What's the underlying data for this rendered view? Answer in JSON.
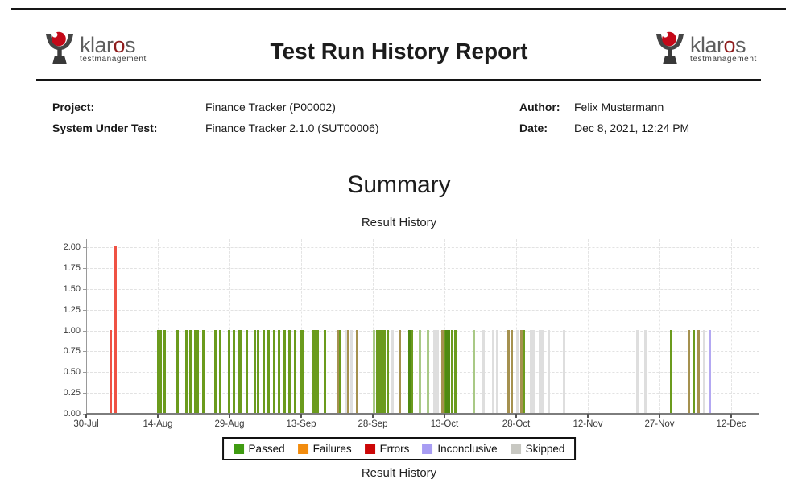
{
  "header": {
    "title": "Test Run History Report",
    "logo": {
      "brand_prefix": "klar",
      "brand_o": "o",
      "brand_suffix": "s",
      "subtitle": "testmanagement",
      "icon_red": "#c40818",
      "icon_gray": "#454545"
    }
  },
  "info": {
    "left": [
      {
        "label": "Project:",
        "value": "Finance Tracker (P00002)"
      },
      {
        "label": "System Under Test:",
        "value": "Finance Tracker 2.1.0 (SUT00006)"
      }
    ],
    "right": [
      {
        "label": "Author:",
        "value": "Felix Mustermann"
      },
      {
        "label": "Date:",
        "value": "Dec 8, 2021, 12:24 PM"
      }
    ]
  },
  "summary": {
    "heading": "Summary",
    "chart_title": "Result History",
    "caption": "Result History"
  },
  "chart_data": {
    "type": "bar",
    "title": "Result History",
    "xlabel": "",
    "ylabel": "",
    "ylim": [
      0,
      2.0
    ],
    "grid": "dashed",
    "legend_position": "bottom-center",
    "y_ticks": [
      "0.00",
      "0.25",
      "0.50",
      "0.75",
      "1.00",
      "1.25",
      "1.50",
      "1.75",
      "2.00"
    ],
    "x_ticks": [
      "30-Jul",
      "14-Aug",
      "29-Aug",
      "13-Sep",
      "28-Sep",
      "13-Oct",
      "28-Oct",
      "12-Nov",
      "27-Nov",
      "12-Dec"
    ],
    "x_tick_interval_days": 15,
    "legend": [
      {
        "label": "Passed",
        "color": "#3f9b11"
      },
      {
        "label": "Failures",
        "color": "#f28c0e"
      },
      {
        "label": "Errors",
        "color": "#cc0707"
      },
      {
        "label": "Inconclusive",
        "color": "#a89df3"
      },
      {
        "label": "Skipped",
        "color": "#c8c8c2"
      }
    ],
    "bar_colors": {
      "passed": "#6b9b1d",
      "passed-light": "#a9c986",
      "passed-dark": "#4f8a10",
      "mixed": "#a5914f",
      "skipped": "#dedede",
      "error": "#ef5244",
      "inconclusive": "#b3a8f2"
    },
    "bars": [
      {
        "d": 5.2,
        "v": 1,
        "c": "error"
      },
      {
        "d": 6.2,
        "v": 2,
        "c": "error"
      },
      {
        "d": 15.0,
        "v": 1,
        "c": "passed"
      },
      {
        "d": 15.6,
        "v": 1,
        "c": "passed"
      },
      {
        "d": 16.4,
        "v": 1,
        "c": "passed"
      },
      {
        "d": 19.2,
        "v": 1,
        "c": "passed"
      },
      {
        "d": 20.9,
        "v": 1,
        "c": "passed"
      },
      {
        "d": 21.8,
        "v": 1,
        "c": "passed"
      },
      {
        "d": 22.9,
        "v": 1,
        "c": "passed"
      },
      {
        "d": 23.4,
        "v": 1,
        "c": "passed"
      },
      {
        "d": 24.6,
        "v": 1,
        "c": "passed"
      },
      {
        "d": 27.1,
        "v": 1,
        "c": "passed"
      },
      {
        "d": 28.1,
        "v": 1,
        "c": "passed"
      },
      {
        "d": 29.9,
        "v": 1,
        "c": "passed"
      },
      {
        "d": 30.9,
        "v": 1,
        "c": "passed"
      },
      {
        "d": 31.9,
        "v": 1,
        "c": "passed"
      },
      {
        "d": 32.4,
        "v": 1,
        "c": "passed"
      },
      {
        "d": 33.7,
        "v": 1,
        "c": "passed"
      },
      {
        "d": 35.3,
        "v": 1,
        "c": "passed"
      },
      {
        "d": 35.9,
        "v": 1,
        "c": "passed"
      },
      {
        "d": 37.1,
        "v": 1,
        "c": "passed"
      },
      {
        "d": 38.1,
        "v": 1,
        "c": "passed"
      },
      {
        "d": 39.3,
        "v": 1,
        "c": "passed"
      },
      {
        "d": 40.4,
        "v": 1,
        "c": "passed"
      },
      {
        "d": 41.5,
        "v": 1,
        "c": "passed"
      },
      {
        "d": 42.6,
        "v": 1,
        "c": "passed"
      },
      {
        "d": 43.8,
        "v": 1,
        "c": "passed"
      },
      {
        "d": 44.9,
        "v": 1,
        "c": "passed"
      },
      {
        "d": 45.4,
        "v": 1,
        "c": "passed"
      },
      {
        "d": 47.4,
        "v": 1,
        "c": "passed"
      },
      {
        "d": 47.9,
        "v": 1,
        "c": "passed"
      },
      {
        "d": 48.4,
        "v": 1,
        "c": "passed"
      },
      {
        "d": 49.9,
        "v": 1,
        "c": "passed"
      },
      {
        "d": 52.6,
        "v": 1,
        "c": "mixed"
      },
      {
        "d": 53.1,
        "v": 1,
        "c": "passed"
      },
      {
        "d": 54.4,
        "v": 1,
        "c": "skipped"
      },
      {
        "d": 54.9,
        "v": 1,
        "c": "mixed"
      },
      {
        "d": 55.5,
        "v": 1,
        "c": "skipped"
      },
      {
        "d": 56.7,
        "v": 1,
        "c": "mixed"
      },
      {
        "d": 60.2,
        "v": 1,
        "c": "passed-light"
      },
      {
        "d": 60.9,
        "v": 1,
        "c": "passed"
      },
      {
        "d": 61.4,
        "v": 1,
        "c": "passed"
      },
      {
        "d": 61.9,
        "v": 1,
        "c": "passed"
      },
      {
        "d": 62.4,
        "v": 1,
        "c": "passed"
      },
      {
        "d": 63.1,
        "v": 1,
        "c": "passed"
      },
      {
        "d": 64.1,
        "v": 1,
        "c": "skipped"
      },
      {
        "d": 65.6,
        "v": 1,
        "c": "mixed"
      },
      {
        "d": 67.6,
        "v": 1,
        "c": "passed-dark"
      },
      {
        "d": 68.2,
        "v": 1,
        "c": "passed"
      },
      {
        "d": 69.8,
        "v": 1,
        "c": "passed-light"
      },
      {
        "d": 71.5,
        "v": 1,
        "c": "passed-light"
      },
      {
        "d": 72.9,
        "v": 1,
        "c": "skipped"
      },
      {
        "d": 73.5,
        "v": 1,
        "c": "skipped"
      },
      {
        "d": 74.5,
        "v": 1,
        "c": "mixed"
      },
      {
        "d": 75.0,
        "v": 1,
        "c": "passed"
      },
      {
        "d": 75.5,
        "v": 1,
        "c": "passed-dark"
      },
      {
        "d": 76.0,
        "v": 1,
        "c": "passed-dark"
      },
      {
        "d": 76.6,
        "v": 1,
        "c": "passed"
      },
      {
        "d": 77.2,
        "v": 1,
        "c": "passed"
      },
      {
        "d": 81.2,
        "v": 1,
        "c": "passed-light"
      },
      {
        "d": 83.1,
        "v": 1,
        "c": "skipped"
      },
      {
        "d": 85.2,
        "v": 1,
        "c": "skipped"
      },
      {
        "d": 86.1,
        "v": 1,
        "c": "skipped"
      },
      {
        "d": 88.4,
        "v": 1,
        "c": "mixed"
      },
      {
        "d": 89.0,
        "v": 1,
        "c": "mixed"
      },
      {
        "d": 90.2,
        "v": 1,
        "c": "skipped"
      },
      {
        "d": 91.1,
        "v": 1,
        "c": "mixed"
      },
      {
        "d": 91.6,
        "v": 1,
        "c": "passed"
      },
      {
        "d": 93.1,
        "v": 1,
        "c": "skipped"
      },
      {
        "d": 93.7,
        "v": 1,
        "c": "skipped"
      },
      {
        "d": 94.9,
        "v": 1,
        "c": "skipped"
      },
      {
        "d": 95.5,
        "v": 1,
        "c": "skipped"
      },
      {
        "d": 96.9,
        "v": 1,
        "c": "skipped"
      },
      {
        "d": 100.1,
        "v": 1,
        "c": "skipped"
      },
      {
        "d": 115.3,
        "v": 1,
        "c": "skipped"
      },
      {
        "d": 117.1,
        "v": 1,
        "c": "skipped"
      },
      {
        "d": 122.4,
        "v": 1,
        "c": "passed"
      },
      {
        "d": 126.1,
        "v": 1,
        "c": "mixed"
      },
      {
        "d": 127.2,
        "v": 1,
        "c": "passed"
      },
      {
        "d": 128.2,
        "v": 1,
        "c": "mixed"
      },
      {
        "d": 129.4,
        "v": 1,
        "c": "skipped"
      },
      {
        "d": 130.6,
        "v": 1,
        "c": "inconclusive"
      }
    ]
  }
}
